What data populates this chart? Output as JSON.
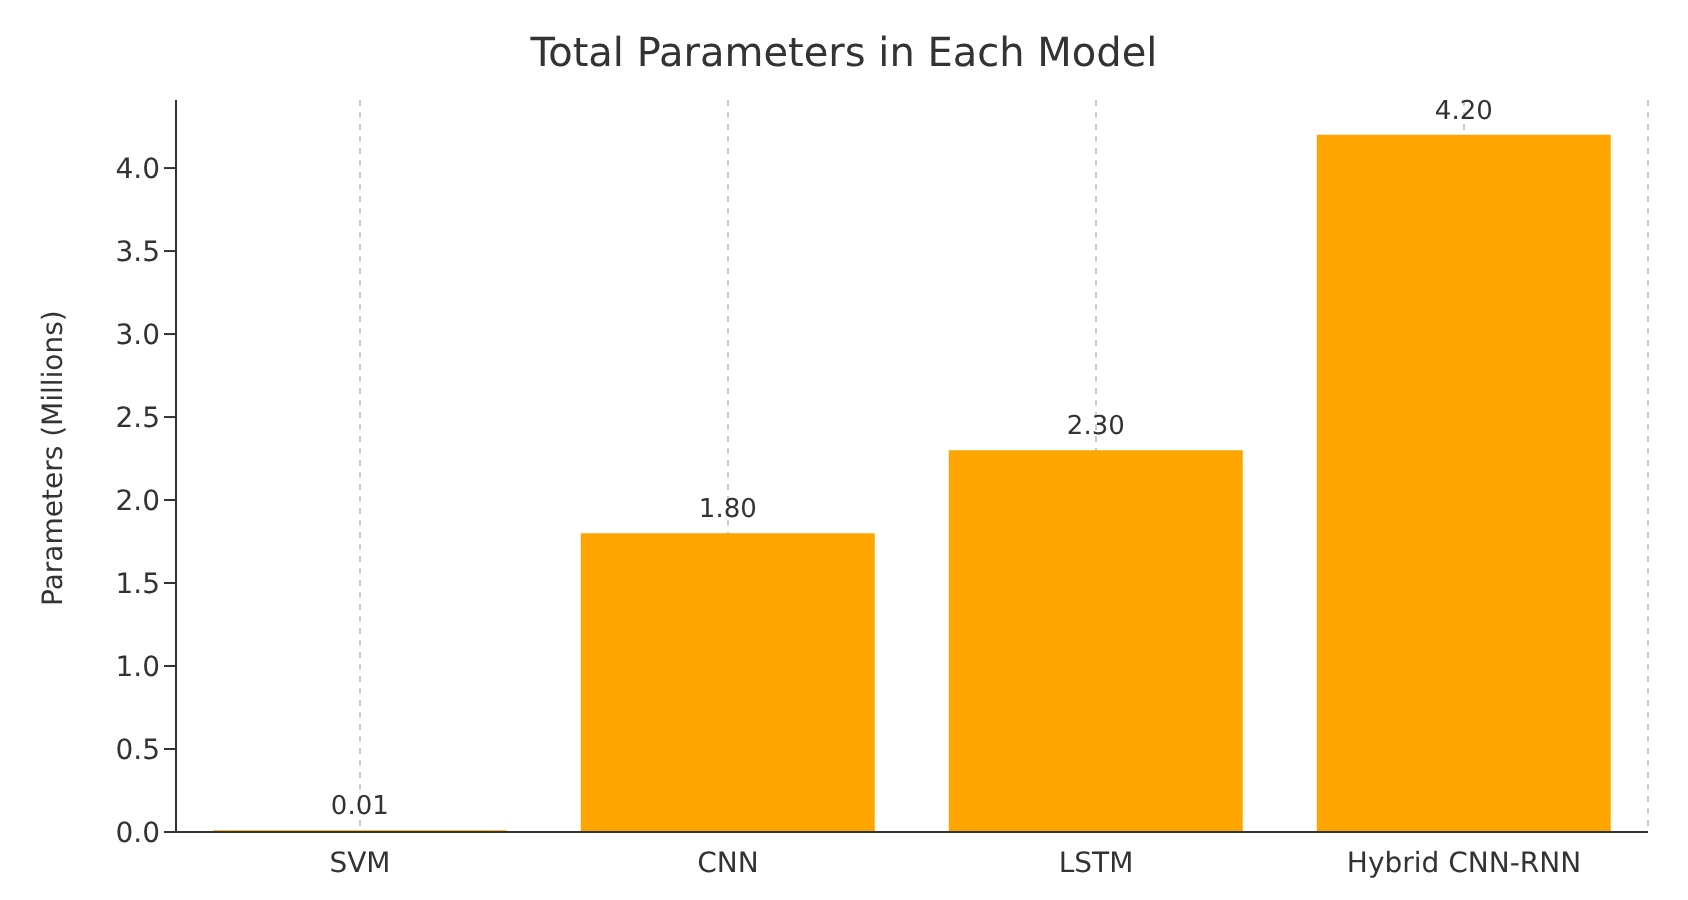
{
  "chart_data": {
    "type": "bar",
    "title": "Total Parameters in Each Model",
    "ylabel": "Parameters (Millions)",
    "categories": [
      "SVM",
      "CNN",
      "LSTM",
      "Hybrid CNN-RNN"
    ],
    "values": [
      0.01,
      1.8,
      2.3,
      4.2
    ],
    "value_labels": [
      "0.01",
      "1.80",
      "2.30",
      "4.20"
    ],
    "color": "#ffa500",
    "ylim": [
      0,
      4.41
    ],
    "yticks": [
      {
        "value": 0,
        "label": "0.0"
      },
      {
        "value": 0.5,
        "label": "0.5"
      },
      {
        "value": 1,
        "label": "1.0"
      },
      {
        "value": 1.5,
        "label": "1.5"
      },
      {
        "value": 2,
        "label": "2.0"
      },
      {
        "value": 2.5,
        "label": "2.5"
      },
      {
        "value": 3,
        "label": "3.0"
      },
      {
        "value": 3.5,
        "label": "3.5"
      },
      {
        "value": 4,
        "label": "4.0"
      }
    ],
    "grid": "x"
  }
}
